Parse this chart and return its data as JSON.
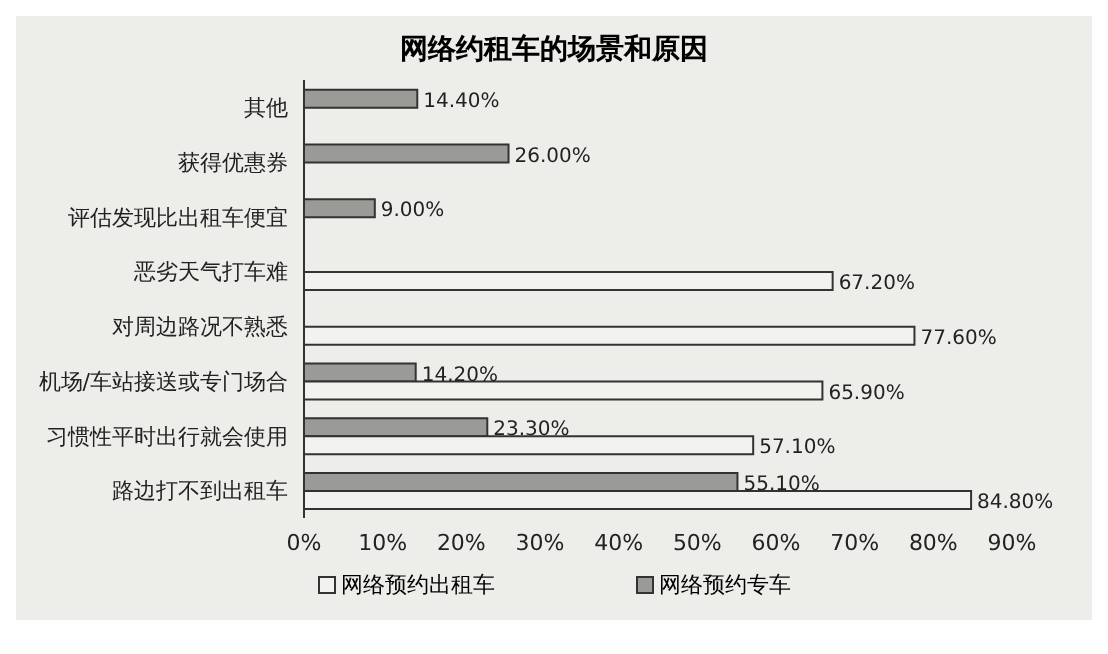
{
  "chart_data": {
    "type": "bar",
    "orientation": "horizontal",
    "title": "网络约租车的场景和原因",
    "categories": [
      "其他",
      "获得优惠券",
      "评估发现比出租车便宜",
      "恶劣天气打车难",
      "对周边路况不熟悉",
      "机场/车站接送或专门场合",
      "习惯性平时出行就会使用",
      "路边打不到出租车"
    ],
    "series": [
      {
        "name": "网络预约出租车",
        "color": "#f2f2ee",
        "values": [
          null,
          null,
          null,
          67.2,
          77.6,
          65.9,
          57.1,
          84.8
        ],
        "value_labels": [
          null,
          null,
          null,
          "67.20%",
          "77.60%",
          "65.90%",
          "57.10%",
          "84.80%"
        ]
      },
      {
        "name": "网络预约专车",
        "color": "#9a9a96",
        "values": [
          14.4,
          26.0,
          9.0,
          null,
          null,
          14.2,
          23.3,
          55.1
        ],
        "value_labels": [
          "14.40%",
          "26.00%",
          "9.00%",
          null,
          null,
          "14.20%",
          "23.30%",
          "55.10%"
        ]
      }
    ],
    "xlim": [
      0,
      90
    ],
    "xticks": [
      {
        "value": 0,
        "label": "0%"
      },
      {
        "value": 10,
        "label": "10%"
      },
      {
        "value": 20,
        "label": "20%"
      },
      {
        "value": 30,
        "label": "30%"
      },
      {
        "value": 40,
        "label": "40%"
      },
      {
        "value": 50,
        "label": "50%"
      },
      {
        "value": 60,
        "label": "60%"
      },
      {
        "value": 70,
        "label": "70%"
      },
      {
        "value": 80,
        "label": "80%"
      },
      {
        "value": 90,
        "label": "90%"
      }
    ],
    "grid": false,
    "legend": "bottom"
  }
}
